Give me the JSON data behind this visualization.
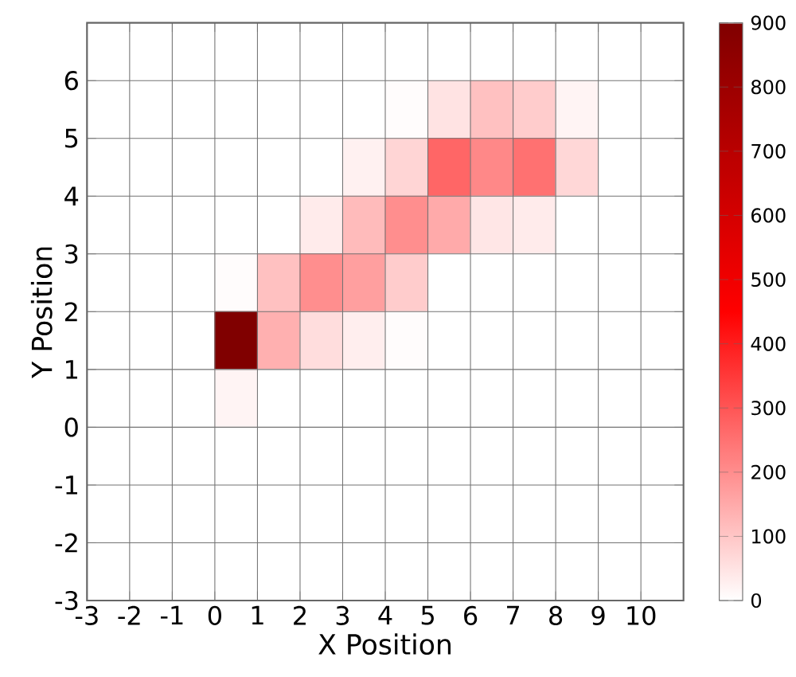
{
  "chart_data": {
    "type": "heatmap",
    "xlabel": "X Position",
    "ylabel": "Y Position",
    "cells": [
      [
        0,
        0,
        0,
        0,
        0,
        0,
        0,
        0,
        0,
        0,
        0,
        0,
        0,
        0
      ],
      [
        0,
        0,
        0,
        0,
        0,
        0,
        0,
        5,
        50,
        110,
        90,
        20,
        0,
        0
      ],
      [
        0,
        0,
        0,
        0,
        0,
        0,
        25,
        75,
        270,
        210,
        250,
        70,
        0,
        0
      ],
      [
        0,
        0,
        0,
        0,
        0,
        35,
        120,
        200,
        150,
        45,
        35,
        0,
        0,
        0
      ],
      [
        0,
        0,
        0,
        5,
        110,
        200,
        170,
        90,
        0,
        0,
        0,
        0,
        0,
        0
      ],
      [
        0,
        0,
        0,
        900,
        140,
        60,
        30,
        5,
        0,
        0,
        0,
        0,
        0,
        0
      ],
      [
        0,
        0,
        0,
        20,
        0,
        0,
        0,
        0,
        0,
        0,
        0,
        0,
        0,
        0
      ],
      [
        0,
        0,
        0,
        0,
        0,
        0,
        0,
        0,
        0,
        0,
        0,
        0,
        0,
        0
      ],
      [
        0,
        0,
        0,
        0,
        0,
        0,
        0,
        0,
        0,
        0,
        0,
        0,
        0,
        0
      ],
      [
        0,
        0,
        0,
        0,
        0,
        0,
        0,
        0,
        0,
        0,
        0,
        0,
        0,
        0
      ]
    ],
    "xlim": [
      -3,
      11
    ],
    "ylim": [
      -3,
      7
    ],
    "xticks": [
      -3,
      -2,
      -1,
      0,
      1,
      2,
      3,
      4,
      5,
      6,
      7,
      8,
      9,
      10
    ],
    "yticks": [
      -3,
      -2,
      -1,
      0,
      1,
      2,
      3,
      4,
      5,
      6
    ],
    "clim": [
      0,
      900
    ],
    "cticks": [
      0,
      100,
      200,
      300,
      400,
      500,
      600,
      700,
      800,
      900
    ],
    "grid": true
  }
}
